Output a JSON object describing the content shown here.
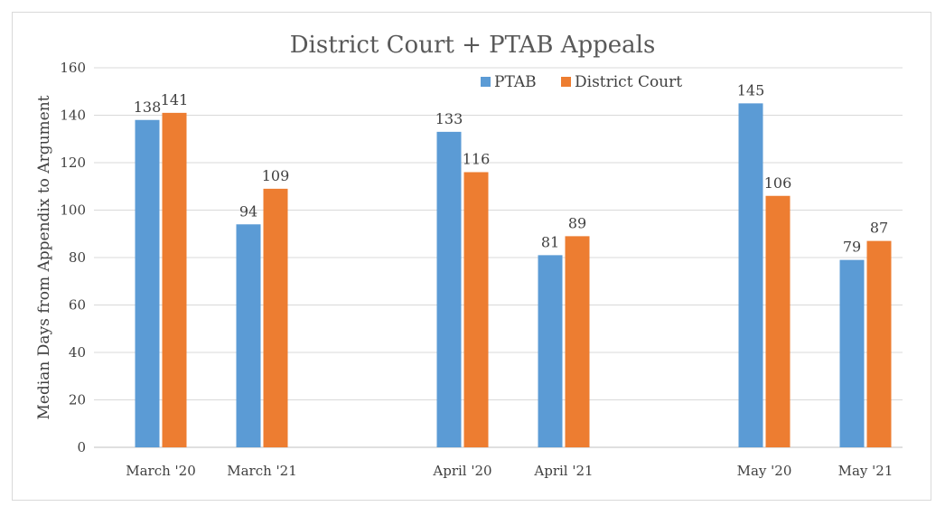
{
  "chart_data": {
    "type": "bar",
    "title": "District Court + PTAB Appeals",
    "xlabel": "",
    "ylabel": "Median Days from Appendix to Argument",
    "ylim": [
      0,
      160
    ],
    "yticks": [
      0,
      20,
      40,
      60,
      80,
      100,
      120,
      140,
      160
    ],
    "categories": [
      "March '20",
      "March '21",
      "April '20",
      "April '21",
      "May '20",
      "May '21"
    ],
    "series": [
      {
        "name": "PTAB",
        "color": "#5b9bd5",
        "values": [
          138,
          94,
          133,
          81,
          145,
          79
        ]
      },
      {
        "name": "District Court",
        "color": "#ed7d31",
        "values": [
          141,
          109,
          116,
          89,
          106,
          87
        ]
      }
    ],
    "data_labels": true,
    "grid": true,
    "legend": "top-right"
  }
}
